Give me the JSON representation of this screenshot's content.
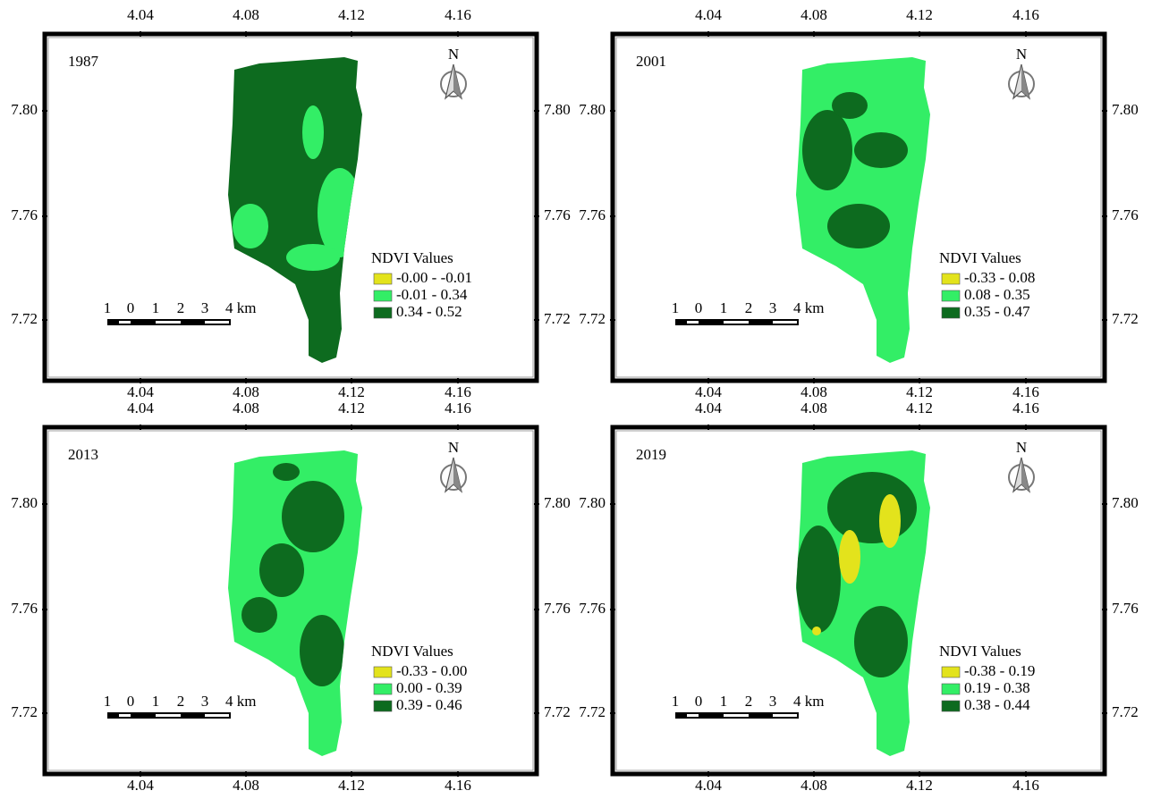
{
  "axes": {
    "x_labels": [
      "4.04",
      "4.08",
      "4.12",
      "4.16"
    ],
    "y_labels": [
      "7.80",
      "7.76",
      "7.72"
    ]
  },
  "north_label": "N",
  "scale_bar": [
    "1",
    "0",
    "1",
    "2",
    "3",
    "4 km"
  ],
  "panels": [
    {
      "year": "1987",
      "legend_title": "NDVI Values",
      "legend": [
        {
          "label": "-0.00 - -0.01",
          "color": "#e3e31c"
        },
        {
          "label": "-0.01 - 0.34",
          "color": "#33ee66"
        },
        {
          "label": "0.34 - 0.52",
          "color": "#0d6b1f"
        }
      ]
    },
    {
      "year": "2001",
      "legend_title": "NDVI Values",
      "legend": [
        {
          "label": "-0.33 - 0.08",
          "color": "#e3e31c"
        },
        {
          "label": "0.08 - 0.35",
          "color": "#33ee66"
        },
        {
          "label": "0.35 - 0.47",
          "color": "#0d6b1f"
        }
      ]
    },
    {
      "year": "2013",
      "legend_title": "NDVI Values",
      "legend": [
        {
          "label": "-0.33 - 0.00",
          "color": "#e3e31c"
        },
        {
          "label": "0.00 - 0.39",
          "color": "#33ee66"
        },
        {
          "label": "0.39 - 0.46",
          "color": "#0d6b1f"
        }
      ]
    },
    {
      "year": "2019",
      "legend_title": "NDVI Values",
      "legend": [
        {
          "label": "-0.38 - 0.19",
          "color": "#e3e31c"
        },
        {
          "label": "0.19 - 0.38",
          "color": "#33ee66"
        },
        {
          "label": "0.38 - 0.44",
          "color": "#0d6b1f"
        }
      ]
    }
  ]
}
